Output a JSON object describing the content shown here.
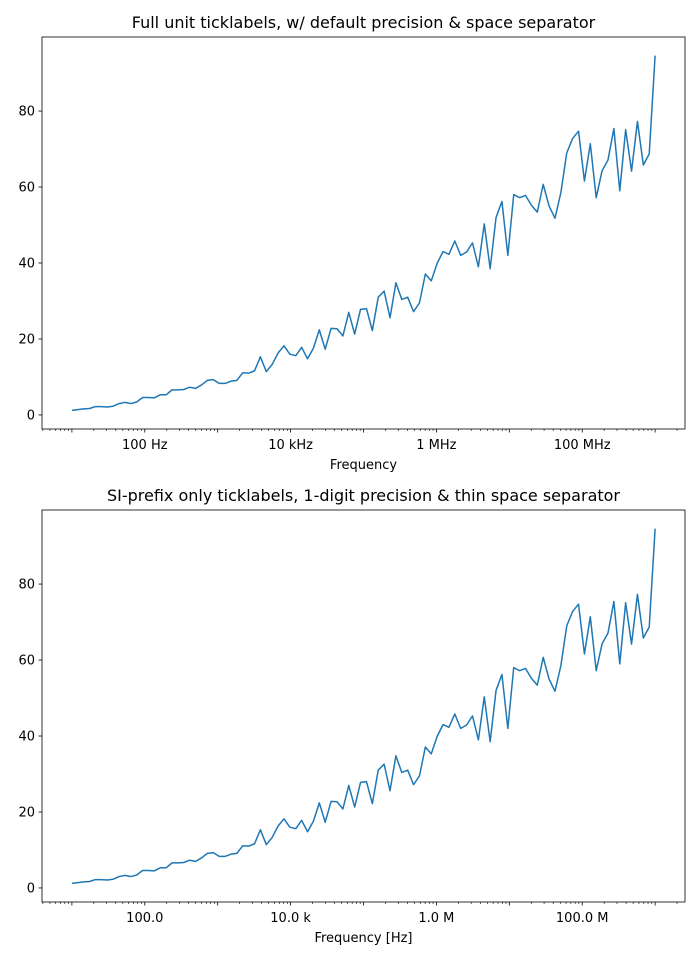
{
  "chart_data": [
    {
      "type": "line",
      "title": "Full unit ticklabels, w/ default precision & space separator",
      "xlabel": "Frequency",
      "ylabel": "",
      "xscale": "log",
      "x_log10_range": [
        1,
        9
      ],
      "n_points": 100,
      "xlim_log10": [
        0.59,
        9.41
      ],
      "ylim": [
        -3.7,
        99.5
      ],
      "xticks_log10": [
        2,
        4,
        6,
        8
      ],
      "xtick_labels": [
        "100 Hz",
        "10 kHz",
        "1 MHz",
        "100 MHz"
      ],
      "yticks": [
        0,
        20,
        40,
        60,
        80
      ],
      "ytick_labels": [
        "0",
        "20",
        "40",
        "60",
        "80"
      ],
      "color": "#1f77b4",
      "grid": false
    },
    {
      "type": "line",
      "title": "SI-prefix only ticklabels, 1-digit precision & thin space separator",
      "xlabel": "Frequency [Hz]",
      "ylabel": "",
      "xscale": "log",
      "x_log10_range": [
        1,
        9
      ],
      "n_points": 100,
      "xlim_log10": [
        0.59,
        9.41
      ],
      "ylim": [
        -3.7,
        99.5
      ],
      "xticks_log10": [
        2,
        4,
        6,
        8
      ],
      "xtick_labels": [
        "100.0",
        "10.0 k",
        "1.0 M",
        "100.0 M"
      ],
      "yticks": [
        0,
        20,
        40,
        60,
        80
      ],
      "ytick_labels": [
        "0",
        "20",
        "40",
        "60",
        "80"
      ],
      "color": "#1f77b4",
      "grid": false
    }
  ],
  "y_values": [
    1.2,
    1.4,
    1.6,
    1.7,
    2.2,
    2.2,
    2.1,
    2.3,
    3.0,
    3.3,
    3.0,
    3.4,
    4.6,
    4.6,
    4.5,
    5.3,
    5.3,
    6.6,
    6.6,
    6.7,
    7.3,
    7.0,
    7.9,
    9.1,
    9.3,
    8.3,
    8.3,
    8.9,
    9.1,
    11.1,
    11.0,
    11.6,
    15.3,
    11.4,
    13.3,
    16.3,
    18.2,
    16.0,
    15.6,
    17.8,
    14.8,
    17.6,
    22.4,
    17.3,
    22.8,
    22.7,
    20.8,
    27.0,
    21.3,
    27.8,
    28.0,
    22.2,
    31.0,
    32.6,
    25.6,
    34.8,
    30.4,
    31.0,
    27.2,
    29.5,
    37.1,
    35.3,
    39.9,
    43.0,
    42.3,
    45.8,
    42.0,
    42.9,
    45.3,
    39.0,
    50.3,
    38.5,
    52.0,
    56.2,
    42.0,
    58.0,
    57.2,
    57.8,
    55.2,
    53.4,
    60.7,
    55.0,
    51.8,
    58.5,
    69.0,
    72.8,
    74.7,
    61.6,
    71.4,
    57.2,
    64.3,
    67.1,
    75.4,
    59.0,
    75.1,
    64.2,
    77.3,
    65.8,
    68.7,
    94.6
  ]
}
